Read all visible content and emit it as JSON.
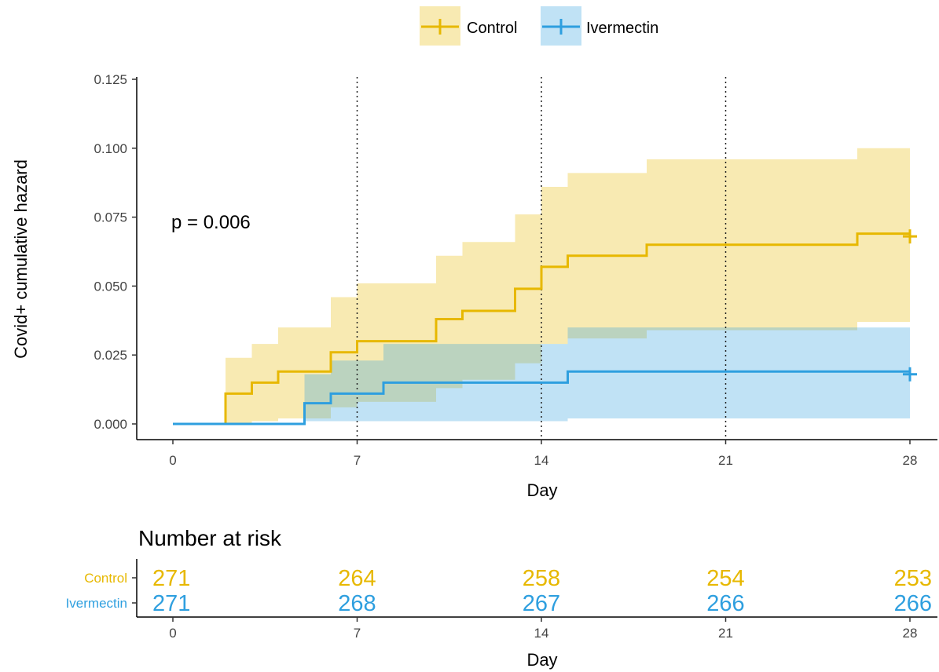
{
  "chart_data": {
    "type": "line",
    "ylabel": "Covid+ cumulative hazard",
    "xlabel": "Day",
    "xlim": [
      0,
      28
    ],
    "ylim": [
      0,
      0.125
    ],
    "x_ticks": [
      0,
      7,
      14,
      21,
      28
    ],
    "x_tick_labels": [
      "0",
      "7",
      "14",
      "21",
      "28"
    ],
    "y_ticks": [
      0,
      0.025,
      0.05,
      0.075,
      0.1,
      0.125
    ],
    "y_tick_labels": [
      "0.000",
      "0.025",
      "0.050",
      "0.075",
      "0.100",
      "0.125"
    ],
    "vlines": [
      7,
      14,
      21
    ],
    "annotation": "p = 0.006",
    "legend_position": "top",
    "series": [
      {
        "name": "Control",
        "color": "#E7B800",
        "steps": [
          [
            0,
            0
          ],
          [
            2,
            0.011
          ],
          [
            3,
            0.015
          ],
          [
            4,
            0.019
          ],
          [
            6,
            0.026
          ],
          [
            7,
            0.03
          ],
          [
            10,
            0.038
          ],
          [
            11,
            0.041
          ],
          [
            13,
            0.049
          ],
          [
            14,
            0.057
          ],
          [
            15,
            0.061
          ],
          [
            18,
            0.065
          ],
          [
            26,
            0.069
          ]
        ],
        "upper": [
          [
            0,
            0
          ],
          [
            2,
            0.024
          ],
          [
            3,
            0.029
          ],
          [
            4,
            0.035
          ],
          [
            6,
            0.046
          ],
          [
            7,
            0.051
          ],
          [
            10,
            0.061
          ],
          [
            11,
            0.066
          ],
          [
            13,
            0.076
          ],
          [
            14,
            0.086
          ],
          [
            15,
            0.091
          ],
          [
            18,
            0.096
          ],
          [
            26,
            0.1
          ]
        ],
        "lower": [
          [
            0,
            0
          ],
          [
            2,
            0.0
          ],
          [
            3,
            0.001
          ],
          [
            4,
            0.002
          ],
          [
            6,
            0.006
          ],
          [
            7,
            0.008
          ],
          [
            10,
            0.013
          ],
          [
            11,
            0.016
          ],
          [
            13,
            0.022
          ],
          [
            14,
            0.029
          ],
          [
            15,
            0.031
          ],
          [
            18,
            0.034
          ],
          [
            26,
            0.037
          ]
        ],
        "end": 28,
        "censor_point": [
          28,
          0.068
        ]
      },
      {
        "name": "Ivermectin",
        "color": "#2E9FDF",
        "steps": [
          [
            0,
            0
          ],
          [
            5,
            0.0075
          ],
          [
            6,
            0.011
          ],
          [
            8,
            0.015
          ],
          [
            15,
            0.019
          ]
        ],
        "upper": [
          [
            0,
            0
          ],
          [
            5,
            0.018
          ],
          [
            6,
            0.023
          ],
          [
            8,
            0.029
          ],
          [
            15,
            0.035
          ]
        ],
        "lower": [
          [
            0,
            0
          ],
          [
            5,
            0.001
          ],
          [
            6,
            0.001
          ],
          [
            8,
            0.001
          ],
          [
            15,
            0.002
          ]
        ],
        "end": 28,
        "censor_point": [
          28,
          0.018
        ]
      }
    ],
    "risk_table": {
      "title": "Number at risk",
      "xlabel": "Day",
      "times": [
        0,
        7,
        14,
        21,
        28
      ],
      "time_labels": [
        "0",
        "7",
        "14",
        "21",
        "28"
      ],
      "rows": [
        {
          "name": "Control",
          "color": "#E7B800",
          "counts": [
            "271",
            "264",
            "258",
            "254",
            "253"
          ]
        },
        {
          "name": "Ivermectin",
          "color": "#2E9FDF",
          "counts": [
            "271",
            "268",
            "267",
            "266",
            "266"
          ]
        }
      ]
    }
  }
}
